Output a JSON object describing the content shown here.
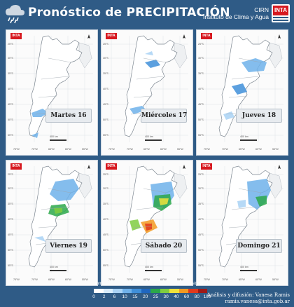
{
  "header": {
    "title": "Pronóstico de PRECIPITACIÓN",
    "org_line1": "CIRN",
    "org_line2": "Instituto de Clima y Agua",
    "logo_text": "INTA"
  },
  "panels": [
    {
      "day": "Martes 16"
    },
    {
      "day": "Miércoles 17"
    },
    {
      "day": "Jueves 18"
    },
    {
      "day": "Viernes 19"
    },
    {
      "day": "Sábado 20"
    },
    {
      "day": "Domingo 21"
    }
  ],
  "panel_logo": "INTA",
  "lat_labels": [
    "25°S",
    "30°S",
    "35°S",
    "40°S",
    "45°S",
    "50°S",
    "55°S"
  ],
  "lon_labels": [
    "75°W",
    "70°W",
    "65°W",
    "60°W",
    "55°W"
  ],
  "scale_label": "400 km",
  "legend": {
    "unit_left": "mm",
    "unit_right": "s/dato",
    "ticks": [
      "0",
      "2",
      "6",
      "10",
      "15",
      "20",
      "25",
      "30",
      "40",
      "60",
      "80",
      "100"
    ],
    "colors": [
      "#ffffff",
      "#d8ecfb",
      "#a9d2f4",
      "#6fb1ea",
      "#3f8fd9",
      "#1f66bf",
      "#2ba84a",
      "#7fcc3f",
      "#f0e23a",
      "#f39a22",
      "#e03a1d",
      "#9e1a18"
    ]
  },
  "footer": {
    "line1": "Análisis y difusión: Vanesa Ramis",
    "line2": "ramis.vanesa@inta.gob.ar"
  },
  "colors": {
    "background": "#2f5b86",
    "inta_red": "#d71920"
  }
}
